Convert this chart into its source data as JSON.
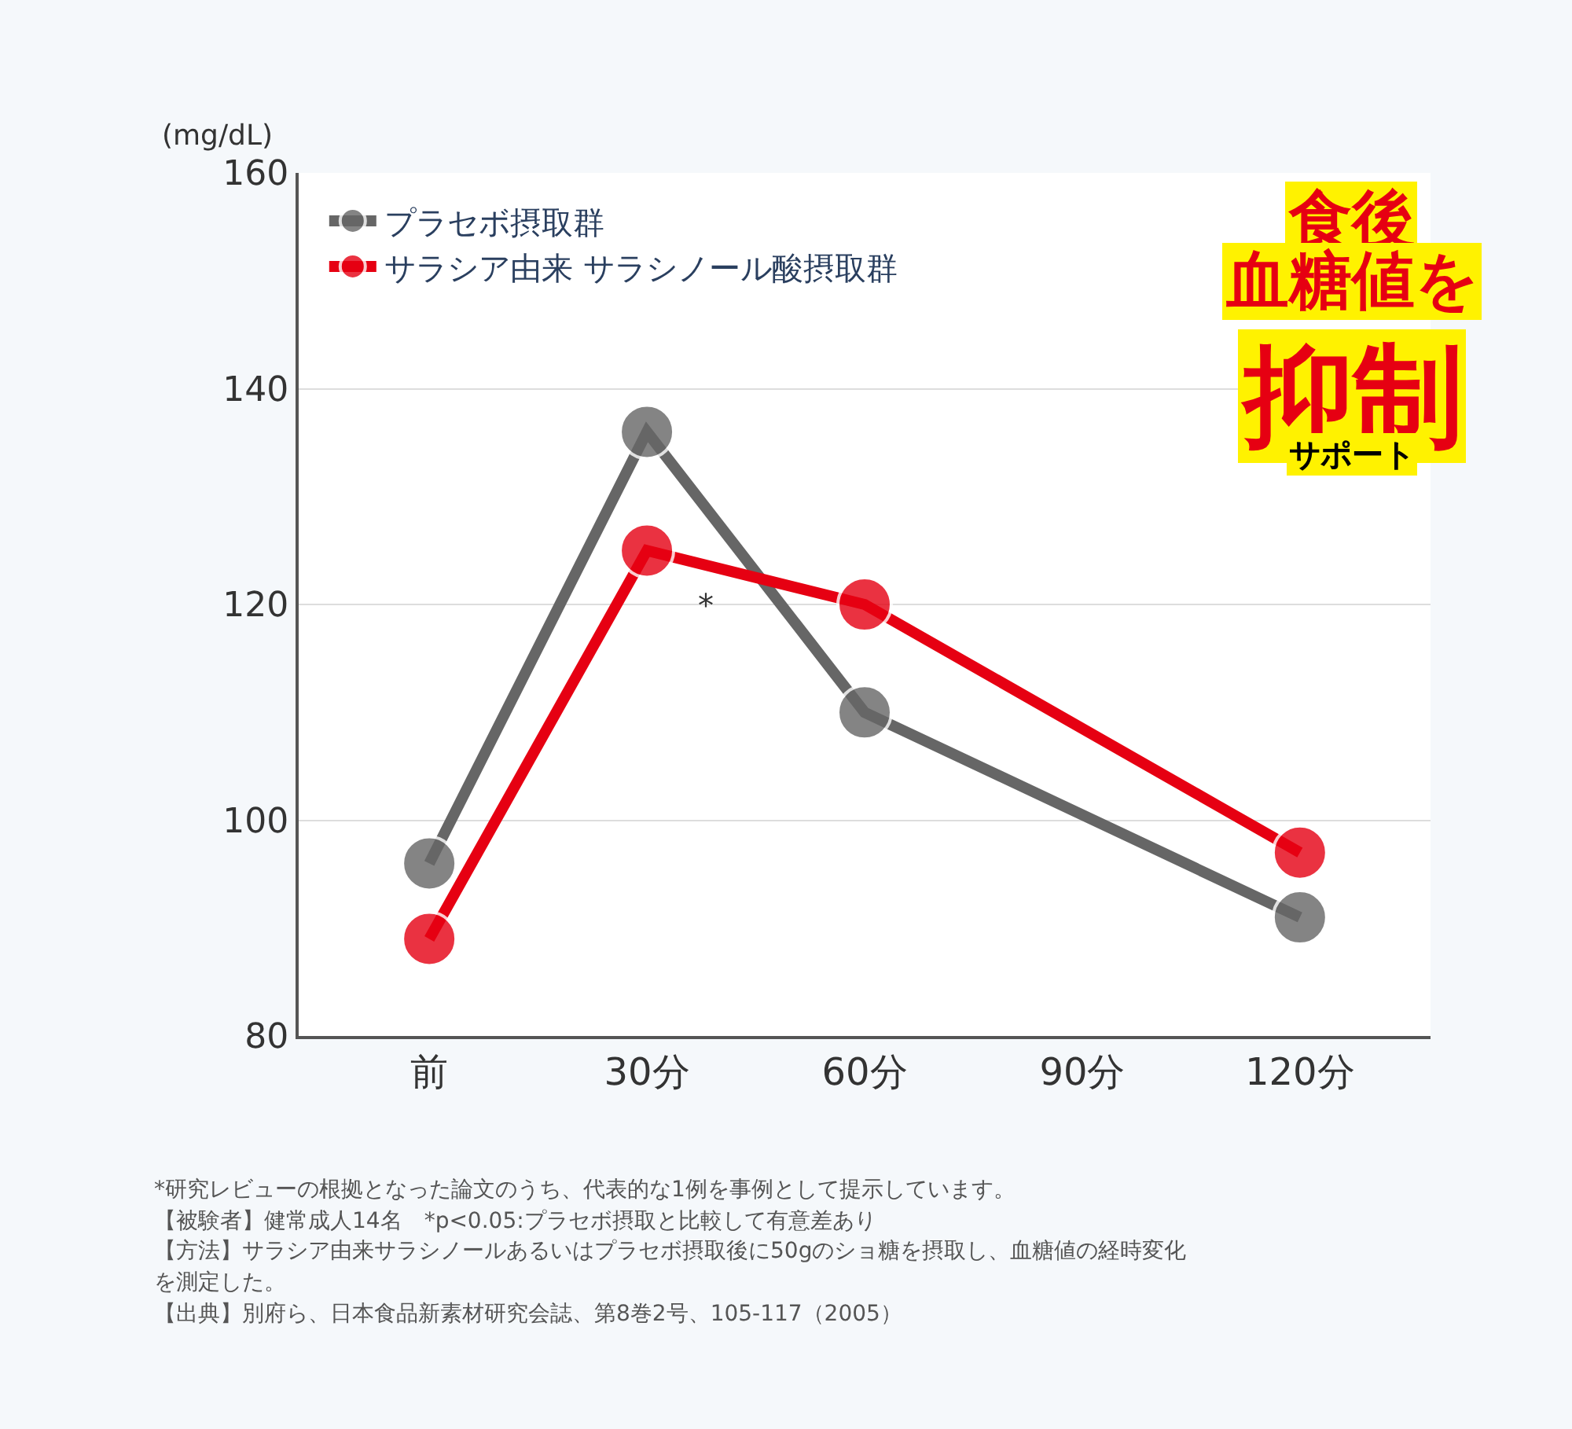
{
  "chart_data": {
    "type": "line",
    "ylabel": "(mg/dL)",
    "categories": [
      "前",
      "30分",
      "60分",
      "90分",
      "120分"
    ],
    "series": [
      {
        "name": "プラセボ摂取群",
        "color": "#666666",
        "values": [
          96,
          136,
          110,
          null,
          91
        ]
      },
      {
        "name": "サラシア由来 サラシノール酸摂取群",
        "color": "#e60012",
        "values": [
          89,
          125,
          120,
          null,
          97
        ]
      }
    ],
    "ylim": [
      80,
      160
    ],
    "yticks": [
      80,
      100,
      120,
      140,
      160
    ],
    "grid": "y",
    "legend": "top left",
    "marker": "circle",
    "line_style": "solid",
    "annotations": [
      "*",
      "食後",
      "血糖値を",
      "抑制",
      "サポート",
      "*研究レビューの根拠となった論文のうち、代表的な1例を事例として提示しています。",
      "【被験者】健常成人14名　*p<0.05:プラセボ摂取と比較して有意差あり",
      "【方法】サラシア由来サラシノールあるいはプラセボ摂取後に50gのショ糖を摂取し、血糖値の経時変化",
      "を測定した。",
      "【出典】別府ら、日本食品新素材研究会誌、第8巻2号、105-117（2005）"
    ]
  }
}
